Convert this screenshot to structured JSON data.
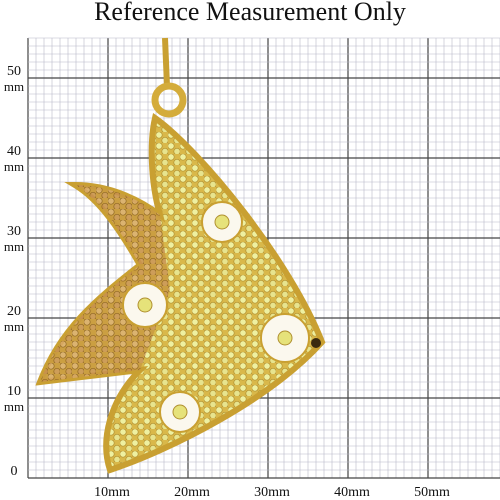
{
  "header": {
    "title": "Reference Measurement Only"
  },
  "y_labels": [
    {
      "number": "50",
      "unit": "mm"
    },
    {
      "number": "40",
      "unit": "mm"
    },
    {
      "number": "30",
      "unit": "mm"
    },
    {
      "number": "20",
      "unit": "mm"
    },
    {
      "number": "10",
      "unit": "mm"
    },
    {
      "number": "0"
    }
  ],
  "x_labels": [
    "10mm",
    "20mm",
    "30mm",
    "40mm",
    "50mm"
  ]
}
